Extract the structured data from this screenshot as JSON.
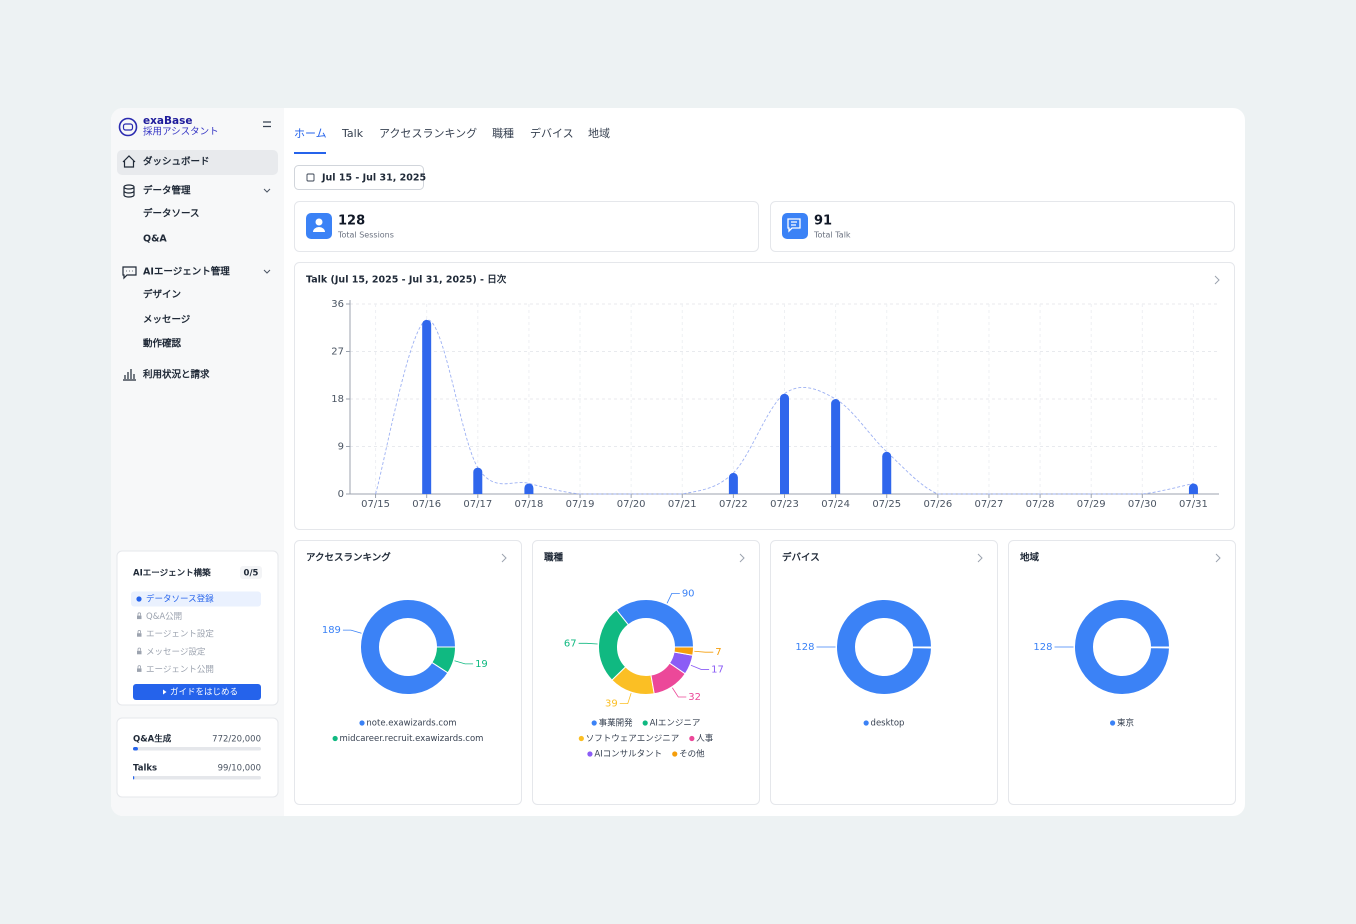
{
  "sidebar": {
    "brand": "exaBase",
    "product": "採用アシスタント",
    "nav": [
      {
        "label": "ダッシュボード"
      },
      {
        "label": "データ管理",
        "children": [
          "データソース",
          "Q&A"
        ]
      },
      {
        "label": "AIエージェント管理",
        "children": [
          "デザイン",
          "メッセージ",
          "動作確認"
        ]
      },
      {
        "label": "利用状況と請求"
      }
    ],
    "guide": {
      "title": "AIエージェント構築",
      "progress": "0/5",
      "steps": [
        "データソース登録",
        "Q&A公開",
        "エージェント設定",
        "メッセージ設定",
        "エージェント公開"
      ],
      "button": "ガイドをはじめる"
    },
    "usage": [
      {
        "label": "Q&A生成",
        "used": 772,
        "limit": 20000,
        "text": "772/20,000"
      },
      {
        "label": "Talks",
        "used": 99,
        "limit": 10000,
        "text": "99/10,000"
      }
    ]
  },
  "tabs": [
    "ホーム",
    "Talk",
    "アクセスランキング",
    "職種",
    "デバイス",
    "地域"
  ],
  "date_range": "Jul 15 - Jul 31, 2025",
  "stats": [
    {
      "value": 128,
      "label": "Total Sessions"
    },
    {
      "value": 91,
      "label": "Total Talk"
    }
  ],
  "chart_data": [
    {
      "type": "bar",
      "title": "Talk (Jul 15, 2025 - Jul 31, 2025) - 日次",
      "categories": [
        "07/15",
        "07/16",
        "07/17",
        "07/18",
        "07/19",
        "07/20",
        "07/21",
        "07/22",
        "07/23",
        "07/24",
        "07/25",
        "07/26",
        "07/27",
        "07/28",
        "07/29",
        "07/30",
        "07/31"
      ],
      "values": [
        0,
        33,
        5,
        2,
        0,
        0,
        0,
        4,
        19,
        18,
        8,
        0,
        0,
        0,
        0,
        0,
        2
      ],
      "color": "#2f66ec",
      "ylim": [
        0,
        36
      ],
      "yticks": [
        0,
        9,
        18,
        27,
        36
      ],
      "grid": true
    },
    {
      "type": "donut",
      "title": "アクセスランキング",
      "categories": [
        "note.exawizards.com",
        "midcareer.recruit.exawizards.com"
      ],
      "values": [
        189,
        19
      ],
      "colors": [
        "#3b82f6",
        "#10b981"
      ]
    },
    {
      "type": "donut",
      "title": "職種",
      "categories": [
        "事業開発",
        "AIエンジニア",
        "ソフトウェアエンジニア",
        "人事",
        "AIコンサルタント",
        "その他"
      ],
      "values": [
        90,
        67,
        39,
        32,
        17,
        7
      ],
      "colors": [
        "#3b82f6",
        "#10b981",
        "#fbbf24",
        "#ec4899",
        "#8b5cf6",
        "#f59e0b"
      ]
    },
    {
      "type": "donut",
      "title": "デバイス",
      "categories": [
        "desktop"
      ],
      "values": [
        128
      ],
      "colors": [
        "#3b82f6"
      ]
    },
    {
      "type": "donut",
      "title": "地域",
      "categories": [
        "東京"
      ],
      "values": [
        128
      ],
      "colors": [
        "#3b82f6"
      ]
    }
  ]
}
